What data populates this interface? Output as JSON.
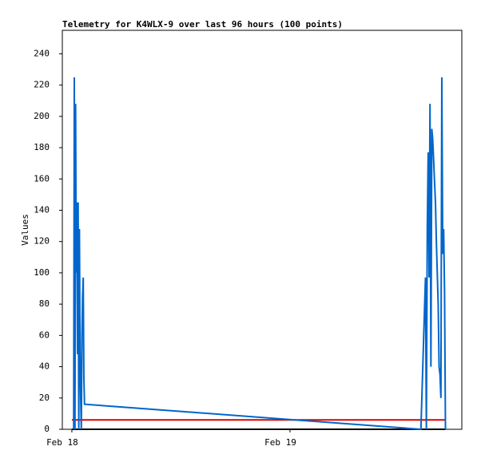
{
  "chart_data": {
    "type": "line",
    "title": "Telemetry for K4WLX-9 over last 96 hours (100 points)",
    "y_label": "Values",
    "xlim": [
      -1.05,
      42.9
    ],
    "ylim": [
      0,
      255
    ],
    "xticks": [
      {
        "value": 0,
        "label": "Feb 18"
      },
      {
        "value": 24,
        "label": "Feb 19"
      }
    ],
    "yticks": [
      0,
      20,
      40,
      60,
      80,
      100,
      120,
      140,
      160,
      180,
      200,
      220,
      240
    ],
    "grid": false,
    "series": [
      {
        "color": "#000000",
        "x": [
          0,
          41.1
        ],
        "values": [
          0,
          0
        ]
      },
      {
        "color": "#e00000",
        "x": [
          0,
          41.1
        ],
        "values": [
          6,
          6
        ]
      },
      {
        "color": "#0066cc",
        "x": [
          0.2,
          0.27,
          0.34,
          0.41,
          0.48,
          0.55,
          0.62,
          0.69,
          0.76,
          0.83,
          0.9,
          0.97,
          1.04,
          1.11,
          1.18,
          1.25,
          1.32,
          1.39,
          38.4,
          38.9,
          39.0,
          39.1,
          39.2,
          39.3,
          39.4,
          39.5,
          39.6,
          39.7,
          39.8,
          39.9,
          40.0,
          40.1,
          40.2,
          40.3,
          40.4,
          40.5,
          40.6,
          40.7,
          40.8,
          40.9,
          41.0,
          41.1
        ],
        "values": [
          0,
          225,
          0,
          208,
          100,
          145,
          48,
          145,
          0,
          128,
          50,
          20,
          0,
          60,
          85,
          97,
          33,
          16,
          0,
          97,
          0,
          128,
          177,
          97,
          208,
          40,
          192,
          185,
          172,
          158,
          145,
          120,
          100,
          80,
          40,
          35,
          20,
          225,
          112,
          128,
          88,
          0
        ]
      }
    ]
  }
}
